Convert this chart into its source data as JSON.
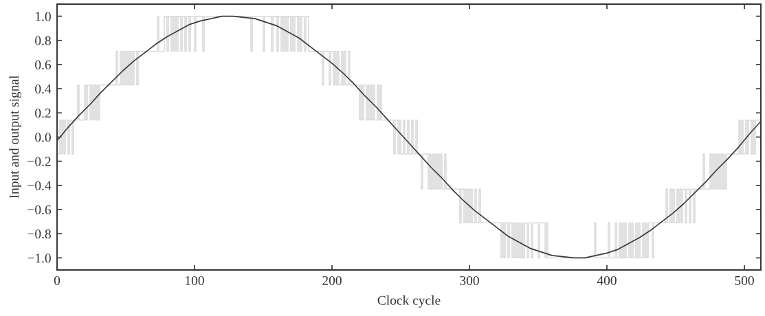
{
  "chart_data": {
    "type": "line",
    "xlabel": "Clock cycle",
    "ylabel": "Input and output signal",
    "xlim": [
      0,
      512
    ],
    "ylim": [
      -1.1,
      1.1
    ],
    "xticks": [
      0,
      100,
      200,
      300,
      400,
      500
    ],
    "yticks": [
      {
        "value": -1.0,
        "label": "−1.0"
      },
      {
        "value": -0.8,
        "label": "−0.8"
      },
      {
        "value": -0.6,
        "label": "−0.6"
      },
      {
        "value": -0.4,
        "label": "−0.4"
      },
      {
        "value": -0.2,
        "label": "−0.2"
      },
      {
        "value": 0.0,
        "label": "0.0"
      },
      {
        "value": 0.2,
        "label": "0.2"
      },
      {
        "value": 0.4,
        "label": "0.4"
      },
      {
        "value": 0.6,
        "label": "0.6"
      },
      {
        "value": 0.8,
        "label": "0.8"
      },
      {
        "value": 1.0,
        "label": "1.0"
      }
    ],
    "series": [
      {
        "type": "step",
        "color": "#bcbcbc",
        "x": [
          0,
          2,
          3,
          4,
          5,
          6,
          8,
          9,
          11,
          12,
          15,
          16,
          20,
          21,
          22,
          24,
          25,
          26,
          27,
          28,
          29,
          30,
          31,
          43,
          44,
          46,
          47,
          48,
          49,
          50,
          51,
          52,
          53,
          54,
          55,
          56,
          58,
          59,
          73,
          74,
          78,
          80,
          81,
          83,
          84,
          85,
          86,
          87,
          88,
          90,
          91,
          93,
          94,
          96,
          97,
          100,
          101,
          106,
          107,
          141,
          142,
          150,
          151,
          156,
          157,
          160,
          161,
          163,
          164,
          165,
          166,
          167,
          168,
          170,
          171,
          172,
          173,
          175,
          176,
          177,
          178,
          180,
          181,
          183,
          193,
          194,
          198,
          199,
          201,
          202,
          203,
          204,
          205,
          207,
          208,
          209,
          210,
          212,
          213,
          220,
          221,
          222,
          223,
          225,
          226,
          227,
          228,
          229,
          230,
          231,
          233,
          234,
          235,
          236,
          245,
          246,
          248,
          249,
          250,
          252,
          253,
          255,
          256,
          258,
          259,
          261,
          262,
          265,
          266,
          270,
          271,
          272,
          273,
          274,
          275,
          276,
          277,
          278,
          279,
          280,
          282,
          283,
          293,
          294,
          296,
          297,
          298,
          299,
          300,
          301,
          302,
          304,
          305,
          307,
          308,
          323,
          324,
          325,
          326,
          328,
          329,
          331,
          332,
          333,
          334,
          335,
          336,
          337,
          338,
          339,
          340,
          342,
          343,
          345,
          346,
          350,
          351,
          355,
          356,
          357,
          391,
          392,
          401,
          402,
          406,
          407,
          409,
          410,
          411,
          412,
          413,
          414,
          416,
          417,
          418,
          419,
          421,
          422,
          423,
          424,
          426,
          427,
          428,
          429,
          430,
          433,
          434,
          443,
          444,
          446,
          447,
          448,
          449,
          451,
          452,
          453,
          454,
          455,
          457,
          458,
          460,
          461,
          463,
          464,
          470,
          471,
          475,
          476,
          477,
          478,
          479,
          480,
          481,
          482,
          483,
          484,
          485,
          486,
          487,
          496,
          497,
          498,
          499,
          501,
          502,
          503,
          505,
          506,
          507,
          508,
          512
        ],
        "values": [
          -0.14,
          0.14,
          -0.14,
          0.14,
          -0.14,
          0.14,
          -0.14,
          0.14,
          -0.14,
          0.14,
          0.43,
          0.14,
          0.43,
          0.14,
          0.43,
          0.14,
          0.43,
          0.14,
          0.43,
          0.14,
          0.43,
          0.14,
          0.43,
          0.71,
          0.43,
          0.71,
          0.43,
          0.71,
          0.43,
          0.71,
          0.43,
          0.71,
          0.43,
          0.71,
          0.43,
          0.71,
          0.43,
          0.71,
          1.0,
          0.71,
          1.0,
          0.71,
          1.0,
          0.71,
          1.0,
          0.71,
          1.0,
          0.71,
          1.0,
          0.71,
          1.0,
          0.71,
          1.0,
          0.71,
          1.0,
          0.71,
          1.0,
          0.71,
          1.0,
          0.71,
          1.0,
          0.71,
          1.0,
          0.71,
          1.0,
          0.71,
          1.0,
          0.71,
          1.0,
          0.71,
          1.0,
          0.71,
          1.0,
          0.71,
          1.0,
          0.71,
          1.0,
          0.71,
          1.0,
          0.71,
          1.0,
          0.71,
          1.0,
          0.71,
          0.43,
          0.71,
          0.43,
          0.71,
          0.43,
          0.71,
          0.43,
          0.71,
          0.43,
          0.71,
          0.43,
          0.71,
          0.43,
          0.71,
          0.43,
          0.14,
          0.43,
          0.14,
          0.43,
          0.14,
          0.43,
          0.14,
          0.43,
          0.14,
          0.43,
          0.14,
          0.43,
          0.14,
          0.43,
          0.14,
          -0.14,
          0.14,
          -0.14,
          0.14,
          -0.14,
          0.14,
          -0.14,
          0.14,
          -0.14,
          0.14,
          -0.14,
          0.14,
          -0.14,
          -0.43,
          -0.14,
          -0.43,
          -0.14,
          -0.43,
          -0.14,
          -0.43,
          -0.14,
          -0.43,
          -0.14,
          -0.43,
          -0.14,
          -0.43,
          -0.14,
          -0.43,
          -0.71,
          -0.43,
          -0.71,
          -0.43,
          -0.71,
          -0.43,
          -0.71,
          -0.43,
          -0.71,
          -0.43,
          -0.71,
          -0.43,
          -0.71,
          -1.0,
          -0.71,
          -1.0,
          -0.71,
          -1.0,
          -0.71,
          -1.0,
          -0.71,
          -1.0,
          -0.71,
          -1.0,
          -0.71,
          -1.0,
          -0.71,
          -1.0,
          -0.71,
          -1.0,
          -0.71,
          -1.0,
          -0.71,
          -1.0,
          -0.71,
          -1.0,
          -0.71,
          -1.0,
          -0.71,
          -1.0,
          -0.71,
          -1.0,
          -0.71,
          -1.0,
          -0.71,
          -1.0,
          -0.71,
          -1.0,
          -0.71,
          -1.0,
          -0.71,
          -1.0,
          -0.71,
          -1.0,
          -0.71,
          -1.0,
          -0.71,
          -1.0,
          -0.71,
          -1.0,
          -0.71,
          -1.0,
          -0.71,
          -1.0,
          -0.71,
          -0.43,
          -0.71,
          -0.43,
          -0.71,
          -0.43,
          -0.71,
          -0.43,
          -0.71,
          -0.43,
          -0.71,
          -0.43,
          -0.71,
          -0.43,
          -0.71,
          -0.43,
          -0.71,
          -0.43,
          -0.14,
          -0.43,
          -0.14,
          -0.43,
          -0.14,
          -0.43,
          -0.14,
          -0.43,
          -0.14,
          -0.43,
          -0.14,
          -0.43,
          -0.14,
          -0.43,
          -0.14,
          0.14,
          -0.14,
          0.14,
          -0.14,
          0.14,
          -0.14,
          0.14,
          -0.14,
          0.14,
          -0.14,
          0.14,
          0.14
        ]
      },
      {
        "color": "#3a3a3a",
        "x": [
          0,
          8,
          16,
          24,
          32,
          40,
          48,
          56,
          64,
          72,
          80,
          88,
          96,
          104,
          112,
          120,
          128,
          136,
          144,
          152,
          160,
          168,
          176,
          184,
          192,
          200,
          208,
          216,
          224,
          232,
          240,
          248,
          256,
          264,
          272,
          280,
          288,
          296,
          304,
          312,
          320,
          328,
          336,
          344,
          352,
          360,
          368,
          376,
          384,
          392,
          400,
          408,
          416,
          424,
          432,
          440,
          448,
          456,
          464,
          472,
          480,
          488,
          496,
          504,
          512
        ],
        "values": [
          -0.03,
          0.08,
          0.18,
          0.27,
          0.37,
          0.46,
          0.55,
          0.63,
          0.7,
          0.77,
          0.83,
          0.88,
          0.93,
          0.96,
          0.98,
          1.0,
          1.0,
          0.99,
          0.98,
          0.95,
          0.92,
          0.87,
          0.82,
          0.75,
          0.68,
          0.61,
          0.53,
          0.44,
          0.34,
          0.25,
          0.15,
          0.05,
          -0.05,
          -0.15,
          -0.25,
          -0.34,
          -0.44,
          -0.53,
          -0.61,
          -0.68,
          -0.75,
          -0.82,
          -0.87,
          -0.92,
          -0.95,
          -0.98,
          -0.99,
          -1.0,
          -1.0,
          -0.98,
          -0.96,
          -0.93,
          -0.88,
          -0.83,
          -0.77,
          -0.7,
          -0.63,
          -0.55,
          -0.46,
          -0.37,
          -0.27,
          -0.18,
          -0.08,
          0.03,
          0.13
        ]
      }
    ]
  }
}
